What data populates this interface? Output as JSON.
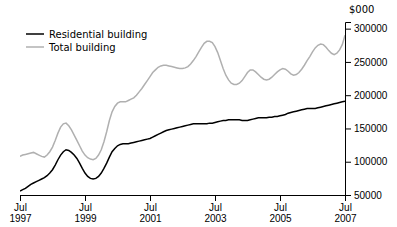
{
  "chart_data": {
    "type": "line",
    "ylabel": "$000",
    "ylim": [
      50000,
      310000
    ],
    "yticks": [
      50000,
      100000,
      150000,
      200000,
      250000,
      300000
    ],
    "grid": false,
    "legend": "upper left",
    "categories": [
      "Jul\n1997",
      null,
      null,
      null,
      null,
      null,
      null,
      null,
      null,
      null,
      null,
      null,
      null,
      null,
      null,
      null,
      null,
      null,
      null,
      null,
      null,
      null,
      null,
      null,
      "Jul\n1999",
      null,
      null,
      null,
      null,
      null,
      null,
      null,
      null,
      null,
      null,
      null,
      null,
      null,
      null,
      null,
      null,
      null,
      null,
      null,
      null,
      null,
      null,
      null,
      "Jul\n2001",
      null,
      null,
      null,
      null,
      null,
      null,
      null,
      null,
      null,
      null,
      null,
      null,
      null,
      null,
      null,
      null,
      null,
      null,
      null,
      null,
      null,
      null,
      null,
      "Jul\n2003",
      null,
      null,
      null,
      null,
      null,
      null,
      null,
      null,
      null,
      null,
      null,
      null,
      null,
      null,
      null,
      null,
      null,
      null,
      null,
      null,
      null,
      null,
      null,
      "Jul\n2005",
      null,
      null,
      null,
      null,
      null,
      null,
      null,
      null,
      null,
      null,
      null,
      null,
      null,
      null,
      null,
      null,
      null,
      null,
      null,
      null,
      null,
      null,
      null,
      "Jul\n2007"
    ],
    "series": [
      {
        "name": "Residential building",
        "color": "#000000",
        "values": [
          56000,
          58000,
          60000,
          63000,
          66000,
          68000,
          70000,
          72000,
          74000,
          76000,
          79000,
          83000,
          88000,
          95000,
          103000,
          110000,
          115000,
          118000,
          117000,
          114000,
          110000,
          105000,
          98000,
          90000,
          83000,
          78000,
          75000,
          74000,
          75000,
          78000,
          83000,
          90000,
          98000,
          107000,
          115000,
          120000,
          124000,
          126000,
          127000,
          127000,
          127000,
          128000,
          129000,
          130000,
          131000,
          132000,
          133000,
          134000,
          135000,
          137000,
          139000,
          141000,
          143000,
          145000,
          147000,
          148000,
          149000,
          150000,
          151000,
          152000,
          153000,
          154000,
          155000,
          156000,
          157000,
          157000,
          157000,
          157000,
          157000,
          157000,
          158000,
          158000,
          159000,
          160000,
          161000,
          162000,
          162000,
          163000,
          163000,
          163000,
          163000,
          163000,
          162000,
          162000,
          162000,
          163000,
          164000,
          165000,
          166000,
          166000,
          166000,
          166000,
          167000,
          167000,
          168000,
          168000,
          169000,
          170000,
          171000,
          173000,
          174000,
          175000,
          176000,
          177000,
          178000,
          179000,
          180000,
          180000,
          180000,
          180000,
          181000,
          182000,
          183000,
          184000,
          185000,
          186000,
          187000,
          188000,
          189000,
          190000,
          191000
        ]
      },
      {
        "name": "Total building",
        "color": "#b0b0b0",
        "values": [
          108000,
          110000,
          111000,
          112000,
          113000,
          114000,
          112000,
          110000,
          108000,
          107000,
          110000,
          115000,
          122000,
          132000,
          143000,
          152000,
          157000,
          158000,
          154000,
          148000,
          140000,
          132000,
          124000,
          116000,
          110000,
          106000,
          104000,
          103000,
          105000,
          110000,
          118000,
          130000,
          145000,
          162000,
          175000,
          183000,
          188000,
          190000,
          190000,
          190000,
          192000,
          194000,
          196000,
          200000,
          205000,
          210000,
          216000,
          222000,
          228000,
          234000,
          238000,
          242000,
          244000,
          245000,
          245000,
          244000,
          243000,
          242000,
          241000,
          240000,
          240000,
          241000,
          243000,
          247000,
          252000,
          258000,
          265000,
          272000,
          278000,
          281000,
          281000,
          279000,
          273000,
          264000,
          252000,
          240000,
          230000,
          223000,
          218000,
          216000,
          216000,
          218000,
          222000,
          228000,
          234000,
          238000,
          238000,
          235000,
          231000,
          227000,
          224000,
          223000,
          224000,
          227000,
          231000,
          235000,
          238000,
          240000,
          239000,
          236000,
          232000,
          230000,
          231000,
          234000,
          239000,
          245000,
          252000,
          258000,
          265000,
          271000,
          275000,
          277000,
          276000,
          272000,
          267000,
          263000,
          261000,
          263000,
          268000,
          276000,
          290000
        ]
      }
    ]
  }
}
